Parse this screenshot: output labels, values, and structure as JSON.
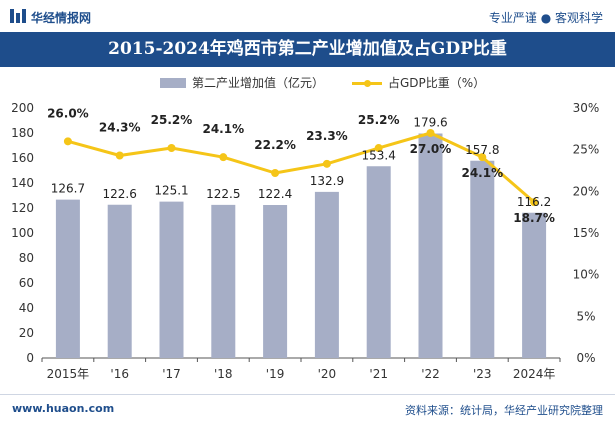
{
  "header": {
    "brand": "华经情报网",
    "tagline": "专业严谨 ● 客观科学"
  },
  "chart_data": {
    "type": "bar+line",
    "title": "2015-2024年鸡西市第二产业增加值及占GDP比重",
    "categories": [
      "2015年",
      "'16",
      "'17",
      "'18",
      "'19",
      "'20",
      "'21",
      "'22",
      "'23",
      "2024年"
    ],
    "series": [
      {
        "name": "第二产业增加值（亿元）",
        "type": "bar",
        "axis": "left",
        "color": "#a6aec6",
        "values": [
          126.7,
          122.6,
          125.1,
          122.5,
          122.4,
          132.9,
          153.4,
          179.6,
          157.8,
          116.2
        ],
        "labels": [
          "126.7",
          "122.6",
          "125.1",
          "122.5",
          "122.4",
          "132.9",
          "153.4",
          "179.6",
          "157.8",
          "116.2"
        ]
      },
      {
        "name": "占GDP比重（%）",
        "type": "line",
        "axis": "right",
        "color": "#f5c518",
        "values": [
          26.0,
          24.3,
          25.2,
          24.1,
          22.2,
          23.3,
          25.2,
          27.0,
          24.1,
          18.7
        ],
        "labels": [
          "26.0%",
          "24.3%",
          "25.2%",
          "24.1%",
          "22.2%",
          "23.3%",
          "25.2%",
          "27.0%",
          "24.1%",
          "18.7%"
        ]
      }
    ],
    "y_left": {
      "min": 0,
      "max": 200,
      "ticks": [
        "0",
        "20",
        "40",
        "60",
        "80",
        "100",
        "120",
        "140",
        "160",
        "180",
        "200"
      ]
    },
    "y_right": {
      "min": 0,
      "max": 30,
      "ticks": [
        "0%",
        "5%",
        "10%",
        "15%",
        "20%",
        "25%",
        "30%"
      ]
    },
    "legend_position": "top-center",
    "grid": false
  },
  "footer": {
    "website": "www.huaon.com",
    "source": "资料来源：统计局，华经产业研究院整理"
  },
  "colors": {
    "brand_blue": "#1e4d8b",
    "bar": "#a6aec6",
    "line": "#f5c518"
  }
}
